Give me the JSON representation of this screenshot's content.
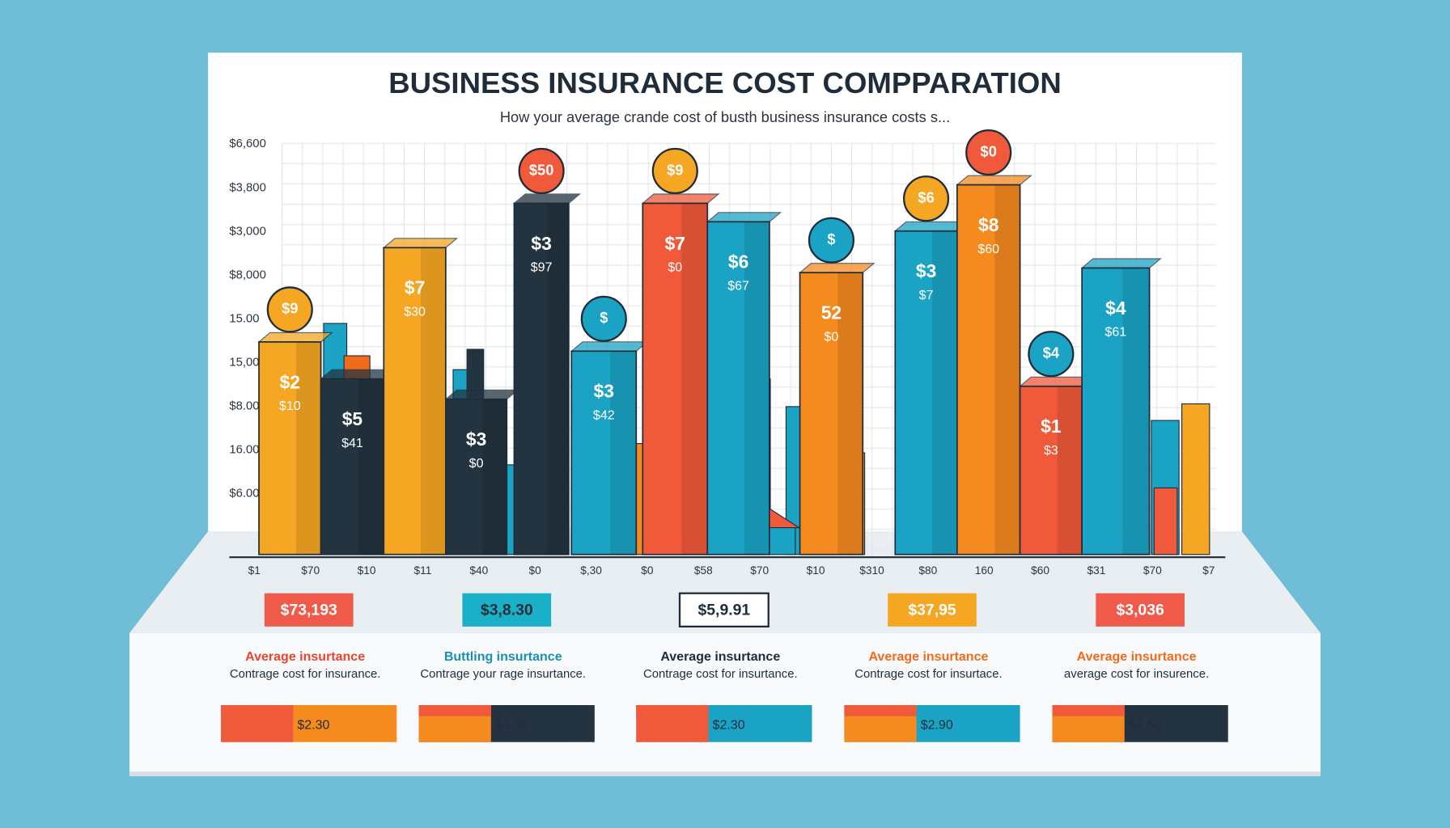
{
  "header": {
    "title": "BUSINESS INSURANCE COST COMPPARATION",
    "subtitle": "How your  average crande cost of busth business insurance costs s..."
  },
  "axis": {
    "y_labels": [
      "$6,600",
      "$3,800",
      "$3,000",
      "$8,000",
      "15.00",
      "15,00",
      "$8.00",
      "16.00",
      "$6.00"
    ],
    "x_labels": [
      "$1",
      "$70",
      "$10",
      "$11",
      "$40",
      "$0",
      "$,30",
      "$0",
      "$58",
      "$70",
      "$10",
      "$310",
      "$80",
      "160",
      "$60",
      "$31",
      "$70",
      "$7"
    ]
  },
  "bars": [
    {
      "label": "$2",
      "sublabel": "$10",
      "badge": "$9"
    },
    {
      "label": "$5",
      "sublabel": "$41"
    },
    {
      "label": "$7",
      "sublabel": "$30"
    },
    {
      "label": "$3",
      "sublabel": "$0"
    },
    {
      "label": "$3",
      "sublabel": "$97",
      "badge": "$50"
    },
    {
      "label": "$3",
      "sublabel": "$42",
      "badge": "$"
    },
    {
      "label": "$7",
      "sublabel": "$0",
      "badge": "$9"
    },
    {
      "label": "$6",
      "sublabel": "$67"
    },
    {
      "label": "52",
      "sublabel": "$0",
      "badge": "$"
    },
    {
      "label": "$3",
      "sublabel": "$7",
      "badge": "$6"
    },
    {
      "label": "$8",
      "sublabel": "$60",
      "badge": "$0"
    },
    {
      "label": "$1",
      "sublabel": "$3",
      "badge": "$4"
    },
    {
      "label": "$4",
      "sublabel": "$61"
    }
  ],
  "cards": [
    {
      "price": "$73,193",
      "title": "Average insurtance",
      "description": "Contrage cost for insurance.",
      "bar_label": "$2.30"
    },
    {
      "price": "$3,8.30",
      "title": "Buttling insurtance",
      "description": "Contrage your rage insurtance.",
      "bar_label": "$4.80"
    },
    {
      "price": "$5,9.91",
      "title": "Average insurtance",
      "description": "Contrage cost for insurtance.",
      "bar_label": "$2.30"
    },
    {
      "price": "$37,95",
      "title": "Average insurtance",
      "description": "Contrage cost for insurtace.",
      "bar_label": "$2.90"
    },
    {
      "price": "$3,036",
      "title": "Average insurtance",
      "description": "average cost for insurence.",
      "bar_label": "$4.60"
    }
  ]
}
